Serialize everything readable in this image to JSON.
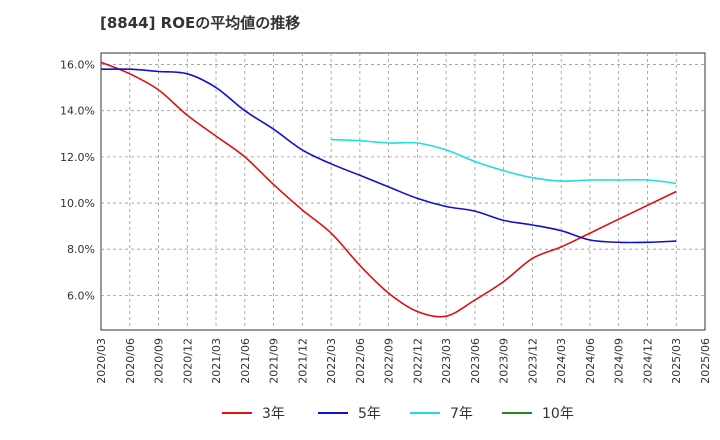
{
  "chart_data": {
    "type": "line",
    "title": "[8844]  ROEの平均値の推移",
    "xlabel": "",
    "ylabel": "",
    "ylim": [
      4.5,
      16.5
    ],
    "yticks": [
      6.0,
      8.0,
      10.0,
      12.0,
      14.0,
      16.0
    ],
    "ytick_labels": [
      "6.0%",
      "8.0%",
      "10.0%",
      "12.0%",
      "14.0%",
      "16.0%"
    ],
    "x": [
      "2020/03",
      "2020/06",
      "2020/09",
      "2020/12",
      "2021/03",
      "2021/06",
      "2021/09",
      "2021/12",
      "2022/03",
      "2022/06",
      "2022/09",
      "2022/12",
      "2023/03",
      "2023/06",
      "2023/09",
      "2023/12",
      "2024/03",
      "2024/06",
      "2024/09",
      "2024/12",
      "2025/03",
      "2025/06"
    ],
    "grid": true,
    "legend_position": "bottom",
    "series": [
      {
        "name": "3年",
        "color": "#dd1111",
        "values": [
          16.1,
          15.6,
          14.9,
          13.8,
          12.9,
          12.0,
          10.8,
          9.7,
          8.7,
          7.3,
          6.1,
          5.3,
          5.1,
          5.8,
          6.6,
          7.6,
          8.1,
          8.7,
          9.3,
          9.9,
          10.5,
          null
        ]
      },
      {
        "name": "5年",
        "color": "#1111cc",
        "values": [
          15.8,
          15.8,
          15.7,
          15.6,
          15.0,
          14.0,
          13.2,
          12.3,
          11.7,
          11.2,
          10.7,
          10.2,
          9.85,
          9.65,
          9.25,
          9.05,
          8.8,
          8.4,
          8.3,
          8.3,
          8.35,
          null
        ]
      },
      {
        "name": "7年",
        "color": "#22dddd",
        "values": [
          null,
          null,
          null,
          null,
          null,
          null,
          null,
          null,
          12.75,
          12.7,
          12.6,
          12.6,
          12.3,
          11.8,
          11.4,
          11.1,
          10.95,
          11.0,
          11.0,
          11.0,
          10.85,
          null
        ]
      },
      {
        "name": "10年",
        "color": "#228822",
        "values": [
          null,
          null,
          null,
          null,
          null,
          null,
          null,
          null,
          null,
          null,
          null,
          null,
          null,
          null,
          null,
          null,
          null,
          null,
          null,
          null,
          null,
          null
        ]
      }
    ]
  }
}
